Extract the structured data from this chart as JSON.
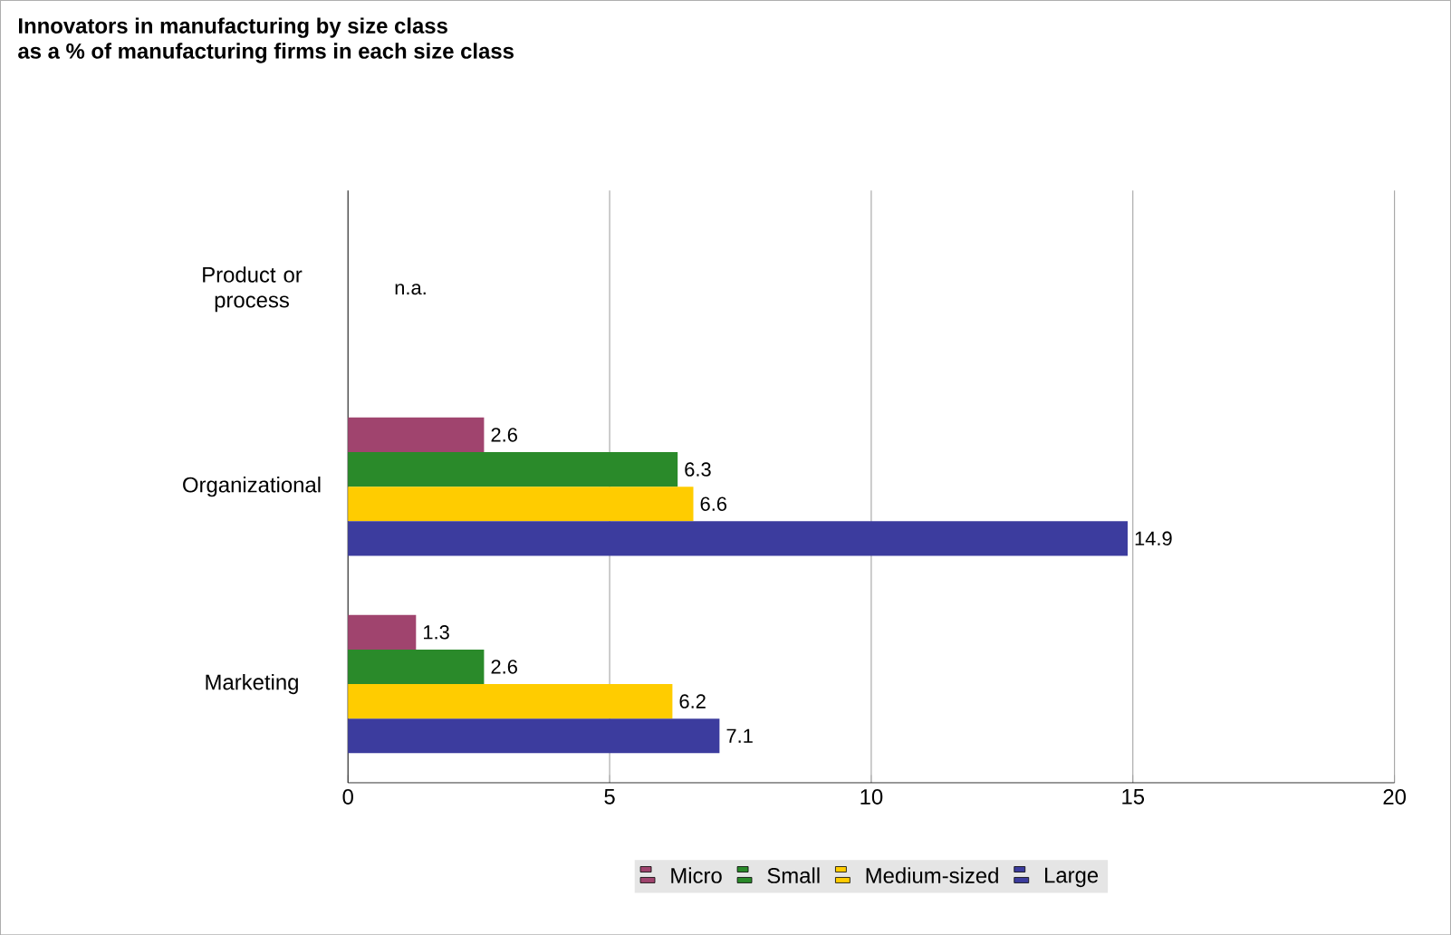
{
  "chart_data": {
    "type": "bar",
    "orientation": "horizontal",
    "title": "Innovators in manufacturing by size class",
    "subtitle": "as a % of manufacturing firms in each size class",
    "categories": [
      "Product or process",
      "Organizational",
      "Marketing"
    ],
    "series": [
      {
        "name": "Micro",
        "color": "#a0446e",
        "values": [
          null,
          2.6,
          1.3
        ]
      },
      {
        "name": "Small",
        "color": "#2a8a2a",
        "values": [
          null,
          6.3,
          2.6
        ]
      },
      {
        "name": "Medium-sized",
        "color": "#ffcc00",
        "values": [
          null,
          6.6,
          6.2
        ]
      },
      {
        "name": "Large",
        "color": "#3c3c9e",
        "values": [
          null,
          14.9,
          7.1
        ]
      }
    ],
    "xlim": [
      0,
      20
    ],
    "xticks": [
      0,
      5,
      10,
      15,
      20
    ],
    "grid": "x",
    "legend": "bottom",
    "data_labels": true,
    "annotations": [
      "n.a."
    ]
  }
}
